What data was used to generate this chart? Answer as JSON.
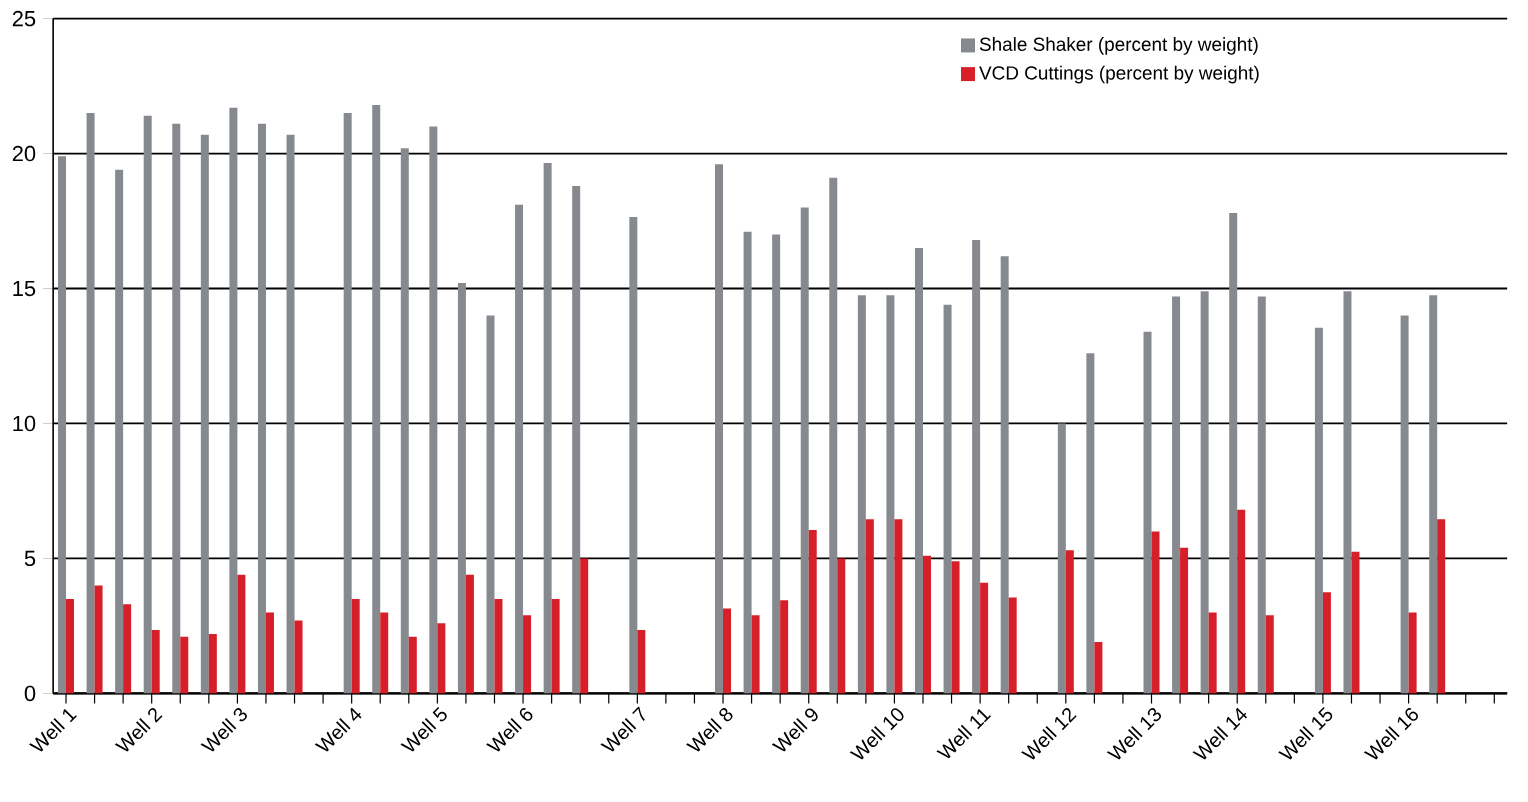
{
  "chart_data": {
    "type": "bar",
    "categories": [
      "Well 1",
      null,
      null,
      "Well 2",
      null,
      null,
      "Well 3",
      null,
      null,
      null,
      "Well 4",
      null,
      null,
      "Well 5",
      null,
      null,
      "Well 6",
      null,
      null,
      null,
      "Well 7",
      null,
      null,
      "Well 8",
      null,
      null,
      "Well 9",
      null,
      null,
      "Well 10",
      null,
      null,
      "Well 11",
      null,
      null,
      "Well 12",
      null,
      null,
      "Well 13",
      null,
      null,
      "Well 14",
      null,
      null,
      "Well 15",
      null,
      null,
      "Well 16",
      null,
      null,
      null
    ],
    "series": [
      {
        "name": "Shale Shaker (percent by weight)",
        "color": "#868a8f",
        "values": [
          19.9,
          21.5,
          19.4,
          21.4,
          21.1,
          20.7,
          21.7,
          21.1,
          20.7,
          null,
          21.5,
          21.8,
          20.2,
          21.0,
          15.2,
          14.0,
          18.1,
          19.65,
          18.8,
          null,
          17.65,
          null,
          null,
          19.6,
          17.1,
          17.0,
          18.0,
          19.1,
          14.75,
          14.75,
          16.5,
          14.4,
          16.8,
          16.2,
          null,
          10.0,
          12.6,
          null,
          13.4,
          14.7,
          14.9,
          17.8,
          14.7,
          null,
          13.55,
          14.9,
          null,
          14.0,
          14.75,
          null,
          null
        ]
      },
      {
        "name": "VCD Cuttings (percent by weight)",
        "color": "#d71f2a",
        "values": [
          3.5,
          4.0,
          3.3,
          2.35,
          2.1,
          2.2,
          4.4,
          3.0,
          2.7,
          null,
          3.5,
          3.0,
          2.1,
          2.6,
          4.4,
          3.5,
          2.9,
          3.5,
          5.0,
          null,
          2.35,
          null,
          null,
          3.15,
          2.9,
          3.45,
          6.05,
          5.0,
          6.45,
          6.45,
          5.1,
          4.9,
          4.1,
          3.55,
          null,
          5.3,
          1.9,
          null,
          6.0,
          5.4,
          3.0,
          6.8,
          2.9,
          null,
          3.75,
          5.25,
          null,
          3.0,
          6.45,
          null,
          null
        ]
      }
    ],
    "ylim": [
      0,
      25
    ],
    "yticks": [
      0,
      5,
      10,
      15,
      20,
      25
    ],
    "grid": "y",
    "legend": "top right"
  }
}
